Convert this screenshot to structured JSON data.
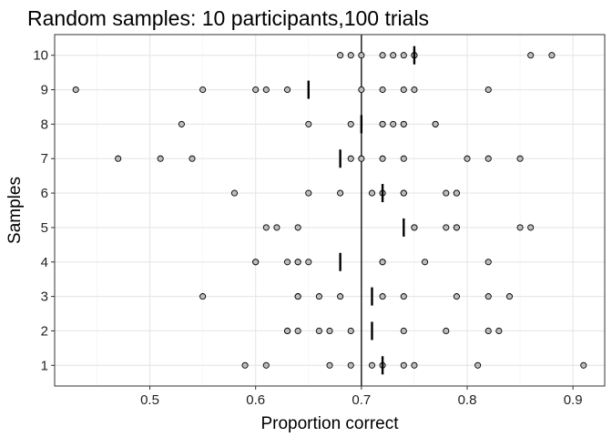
{
  "chart_data": {
    "type": "scatter",
    "title": "Random samples: 10 participants,100 trials",
    "xlabel": "Proportion correct",
    "ylabel": "Samples",
    "xlim": [
      0.41,
      0.93
    ],
    "ylim": [
      0.4,
      10.6
    ],
    "x_ticks": [
      0.5,
      0.6,
      0.7,
      0.8,
      0.9
    ],
    "x_tick_labels": [
      "0.5",
      "0.6",
      "0.7",
      "0.8",
      "0.9"
    ],
    "y_ticks": [
      1,
      2,
      3,
      4,
      5,
      6,
      7,
      8,
      9,
      10
    ],
    "y_tick_labels": [
      "1",
      "2",
      "3",
      "4",
      "5",
      "6",
      "7",
      "8",
      "9",
      "10"
    ],
    "grid": true,
    "reference_line_x": 0.7,
    "point_fill": "#bdbdbd",
    "point_stroke": "#000000",
    "series": [
      {
        "y": 1,
        "x": [
          0.59,
          0.61,
          0.67,
          0.69,
          0.71,
          0.72,
          0.74,
          0.75,
          0.81,
          0.91
        ],
        "mean": 0.72
      },
      {
        "y": 2,
        "x": [
          0.63,
          0.63,
          0.64,
          0.66,
          0.67,
          0.69,
          0.74,
          0.78,
          0.82,
          0.83
        ],
        "mean": 0.71
      },
      {
        "y": 3,
        "x": [
          0.55,
          0.64,
          0.64,
          0.66,
          0.68,
          0.72,
          0.74,
          0.79,
          0.82,
          0.84
        ],
        "mean": 0.71
      },
      {
        "y": 4,
        "x": [
          0.6,
          0.6,
          0.63,
          0.64,
          0.64,
          0.65,
          0.72,
          0.72,
          0.76,
          0.82
        ],
        "mean": 0.68
      },
      {
        "y": 5,
        "x": [
          0.61,
          0.62,
          0.64,
          0.75,
          0.75,
          0.78,
          0.79,
          0.79,
          0.85,
          0.86
        ],
        "mean": 0.74
      },
      {
        "y": 6,
        "x": [
          0.58,
          0.65,
          0.68,
          0.71,
          0.72,
          0.74,
          0.74,
          0.78,
          0.79,
          0.79
        ],
        "mean": 0.72
      },
      {
        "y": 7,
        "x": [
          0.47,
          0.51,
          0.54,
          0.69,
          0.7,
          0.72,
          0.74,
          0.8,
          0.82,
          0.85
        ],
        "mean": 0.68
      },
      {
        "y": 8,
        "x": [
          0.53,
          0.65,
          0.69,
          0.72,
          0.72,
          0.73,
          0.74,
          0.74,
          0.77,
          0.77
        ],
        "mean": 0.7
      },
      {
        "y": 9,
        "x": [
          0.43,
          0.55,
          0.6,
          0.61,
          0.63,
          0.7,
          0.72,
          0.74,
          0.75,
          0.82
        ],
        "mean": 0.65
      },
      {
        "y": 10,
        "x": [
          0.68,
          0.69,
          0.7,
          0.72,
          0.73,
          0.74,
          0.75,
          0.75,
          0.86,
          0.88
        ],
        "mean": 0.75
      }
    ]
  }
}
